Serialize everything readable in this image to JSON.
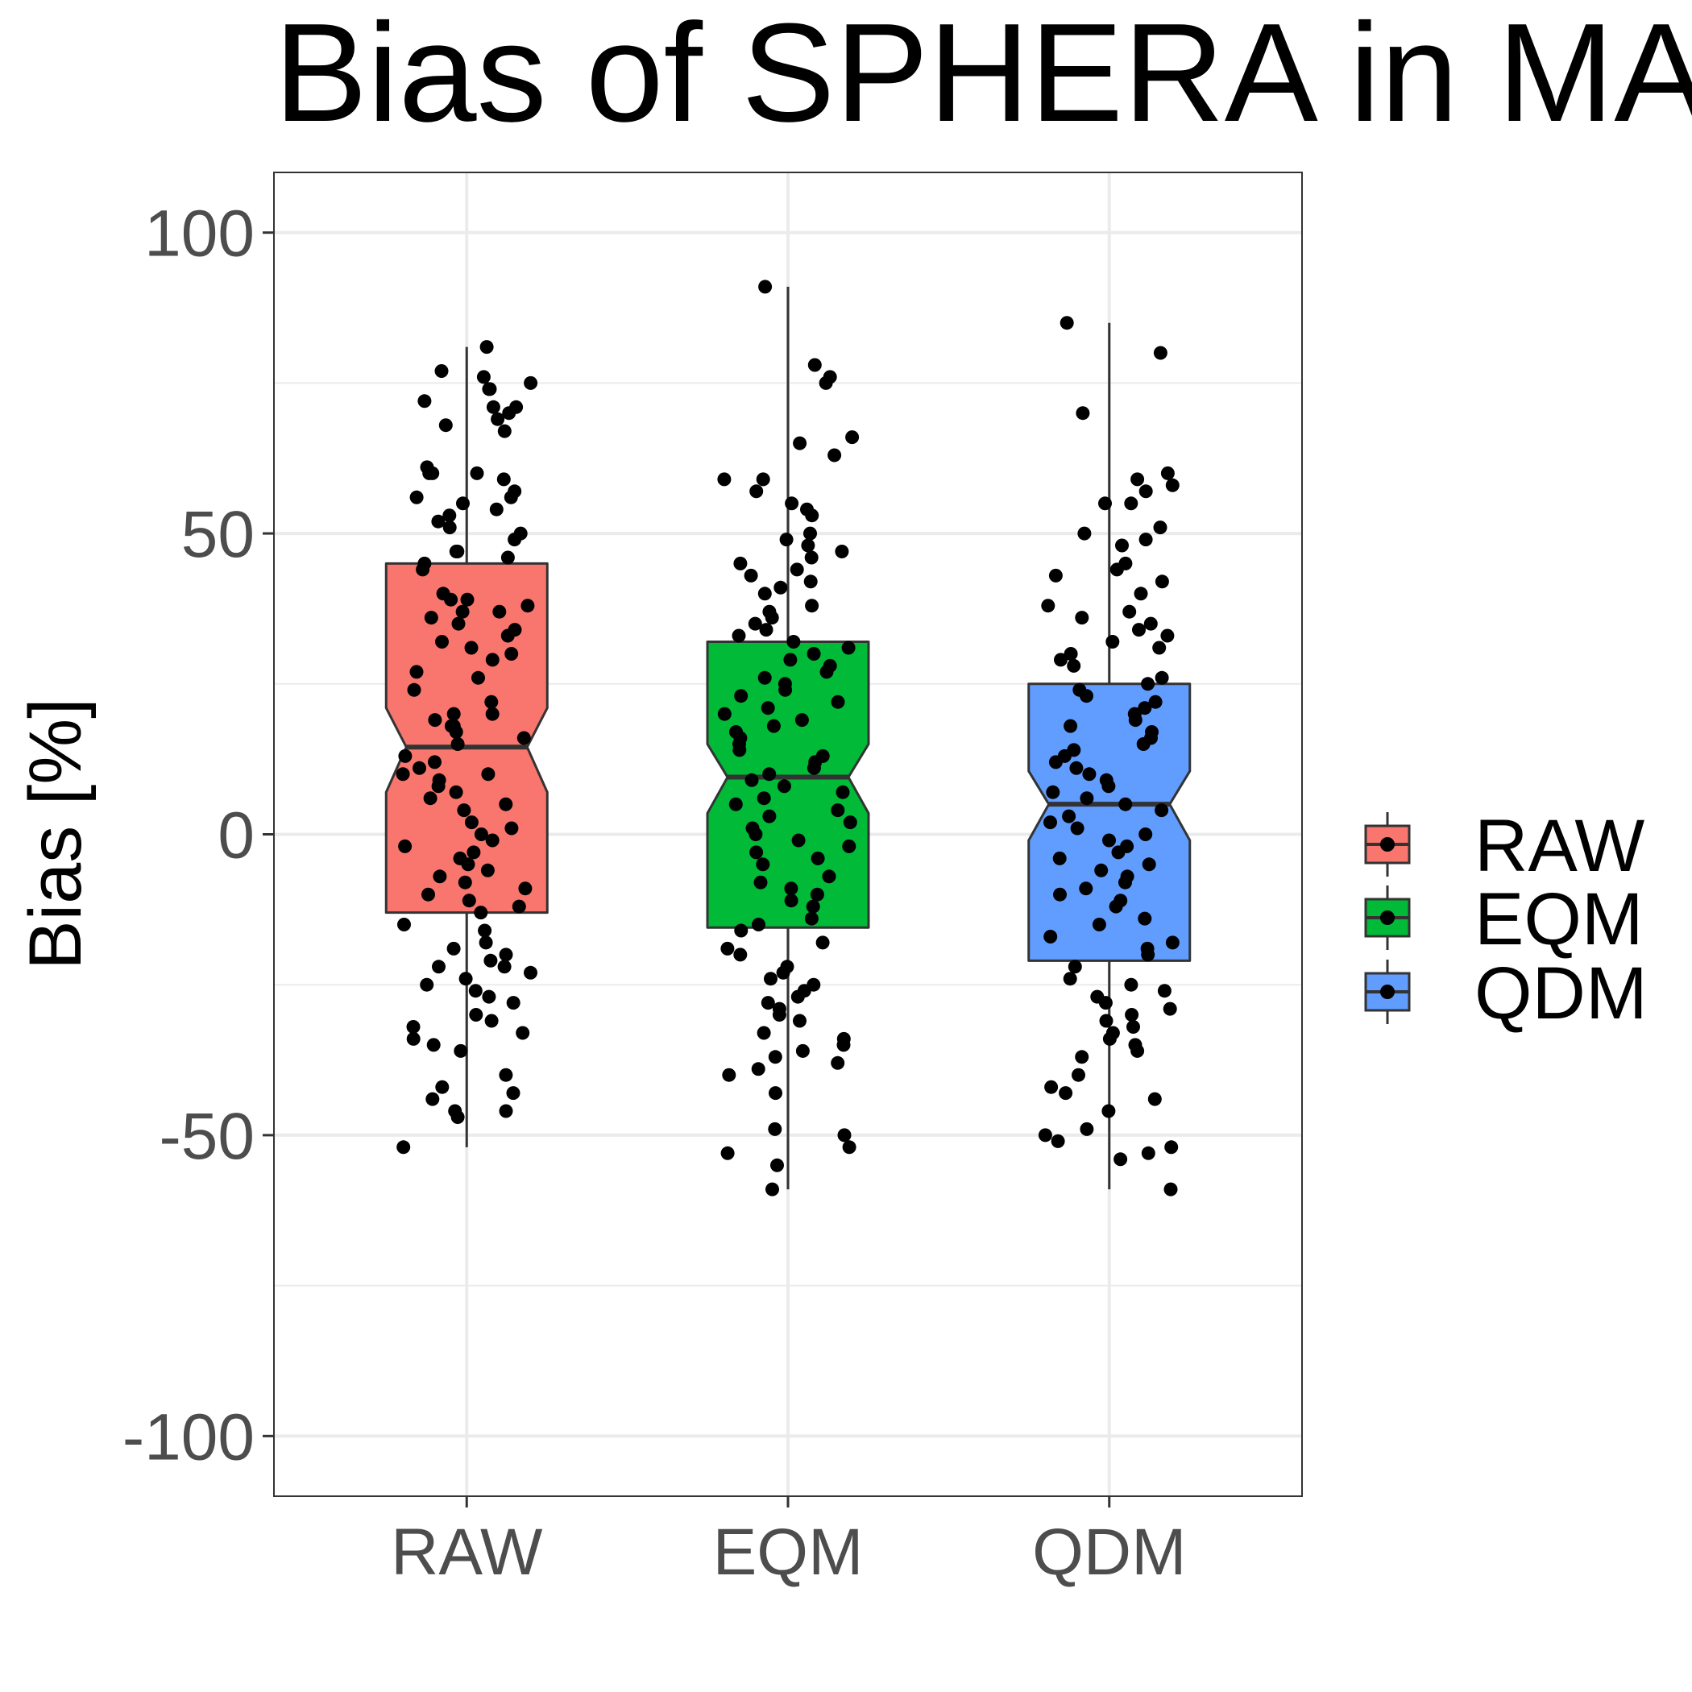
{
  "chart_data": {
    "type": "boxplot",
    "title": "Bias of SPHERA in MA",
    "xlabel": "",
    "ylabel": "Bias [%]",
    "ylim": [
      -110,
      110
    ],
    "y_ticks": [
      -100,
      -50,
      0,
      50,
      100
    ],
    "grid": true,
    "notched": true,
    "jittered_points": true,
    "legend_position": "right",
    "categories": [
      "RAW",
      "EQM",
      "QDM"
    ],
    "series": [
      {
        "name": "RAW",
        "color": "#F8766D",
        "whisker_low": -52,
        "q1": -13,
        "median": 14.5,
        "q3": 45,
        "whisker_high": 81,
        "notch_low": 7,
        "notch_high": 21,
        "points": [
          81,
          77,
          76,
          75,
          74,
          74,
          72,
          71,
          71,
          70,
          69,
          68,
          67,
          61,
          60,
          60,
          60,
          59,
          57,
          56,
          56,
          55,
          54,
          53,
          52,
          51,
          50,
          49,
          47,
          47,
          46,
          45,
          44,
          40,
          39,
          39,
          38,
          37,
          37,
          36,
          35,
          34,
          33,
          32,
          31,
          30,
          29,
          27,
          26,
          24,
          22,
          20,
          20,
          19,
          18,
          18,
          17,
          16,
          15,
          13,
          12,
          11,
          10,
          10,
          9,
          8,
          7,
          6,
          5,
          4,
          2,
          1,
          0,
          -1,
          -2,
          -3,
          -4,
          -5,
          -6,
          -7,
          -8,
          -9,
          -10,
          -11,
          -12,
          -13,
          -15,
          -16,
          -18,
          -19,
          -20,
          -21,
          -22,
          -22,
          -23,
          -24,
          -25,
          -26,
          -27,
          -28,
          -30,
          -31,
          -32,
          -33,
          -34,
          -35,
          -36,
          -40,
          -42,
          -43,
          -44,
          -46,
          -46,
          -47,
          -52
        ]
      },
      {
        "name": "EQM",
        "color": "#00BA38",
        "whisker_low": -59,
        "q1": -15.5,
        "median": 9.5,
        "q3": 32,
        "whisker_high": 91,
        "notch_low": 3.5,
        "notch_high": 15,
        "points": [
          91,
          78,
          76,
          75,
          66,
          65,
          63,
          59,
          59,
          57,
          55,
          54,
          53,
          50,
          49,
          48,
          47,
          46,
          45,
          44,
          43,
          42,
          41,
          40,
          38,
          37,
          36,
          35,
          34,
          33,
          32,
          31,
          30,
          29,
          28,
          27,
          26,
          25,
          24,
          23,
          22,
          21,
          20,
          19,
          18,
          17,
          16,
          15,
          14,
          13,
          12,
          11,
          10,
          9,
          8,
          7,
          6,
          5,
          4,
          3,
          2,
          1,
          0,
          -1,
          -2,
          -3,
          -4,
          -5,
          -7,
          -8,
          -9,
          -10,
          -11,
          -12,
          -14,
          -15,
          -16,
          -18,
          -19,
          -20,
          -22,
          -23,
          -24,
          -25,
          -26,
          -27,
          -28,
          -29,
          -30,
          -31,
          -33,
          -34,
          -35,
          -36,
          -37,
          -38,
          -39,
          -40,
          -43,
          -49,
          -50,
          -52,
          -53,
          -55,
          -59
        ]
      },
      {
        "name": "QDM",
        "color": "#619CFF",
        "whisker_low": -59,
        "q1": -21,
        "median": 5,
        "q3": 25,
        "whisker_high": 85,
        "notch_low": -1,
        "notch_high": 10.5,
        "points": [
          85,
          80,
          70,
          60,
          59,
          58,
          57,
          55,
          55,
          51,
          50,
          49,
          48,
          45,
          44,
          43,
          42,
          40,
          38,
          37,
          36,
          35,
          34,
          33,
          32,
          31,
          30,
          29,
          28,
          26,
          25,
          24,
          23,
          22,
          21,
          20,
          19,
          18,
          17,
          16,
          15,
          14,
          13,
          12,
          11,
          10,
          9,
          8,
          7,
          6,
          5,
          4,
          3,
          2,
          1,
          0,
          -1,
          -2,
          -3,
          -4,
          -5,
          -6,
          -7,
          -8,
          -9,
          -10,
          -11,
          -12,
          -14,
          -15,
          -17,
          -18,
          -19,
          -20,
          -22,
          -24,
          -25,
          -26,
          -27,
          -28,
          -29,
          -30,
          -31,
          -32,
          -33,
          -34,
          -35,
          -36,
          -37,
          -40,
          -42,
          -43,
          -44,
          -46,
          -49,
          -50,
          -51,
          -52,
          -53,
          -54,
          -59
        ]
      }
    ]
  }
}
